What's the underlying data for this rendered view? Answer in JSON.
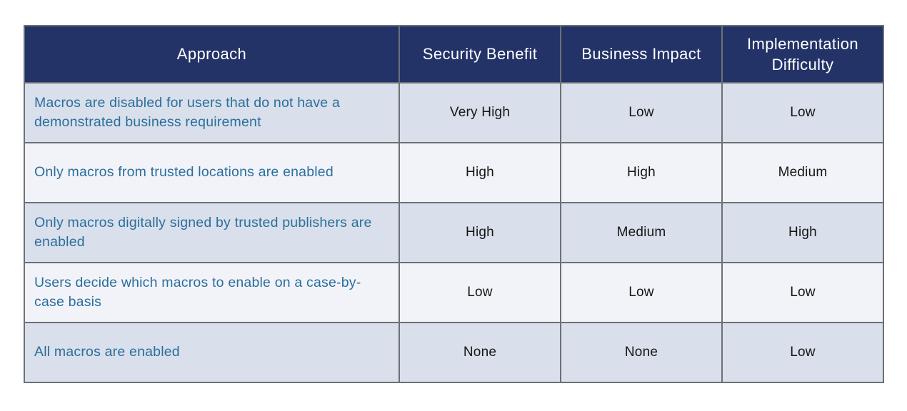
{
  "page": {
    "background": "#ffffff"
  },
  "table": {
    "columns": [
      {
        "key": "approach",
        "label": "Approach"
      },
      {
        "key": "security_benefit",
        "label": "Security Benefit"
      },
      {
        "key": "business_impact",
        "label": "Business Impact"
      },
      {
        "key": "implementation_difficulty",
        "label": "Implementation Difficulty"
      }
    ],
    "rows": [
      {
        "approach": "Macros are disabled for users that do not have a demonstrated business requirement",
        "security_benefit": "Very High",
        "business_impact": "Low",
        "implementation_difficulty": "Low"
      },
      {
        "approach": "Only macros from trusted locations are enabled",
        "security_benefit": "High",
        "business_impact": "High",
        "implementation_difficulty": "Medium"
      },
      {
        "approach": "Only macros digitally signed by trusted publishers are enabled",
        "security_benefit": "High",
        "business_impact": "Medium",
        "implementation_difficulty": "High"
      },
      {
        "approach": "Users decide which macros to enable on a case-by-case basis",
        "security_benefit": "Low",
        "business_impact": "Low",
        "implementation_difficulty": "Low"
      },
      {
        "approach": "All macros are enabled",
        "security_benefit": "None",
        "business_impact": "None",
        "implementation_difficulty": "Low"
      }
    ],
    "colors": {
      "header_bg": "#233368",
      "header_text": "#ffffff",
      "row_odd_bg": "#d9dfeb",
      "row_even_bg": "#f2f3f9",
      "approach_text": "#2b6f9c",
      "value_text": "#161616",
      "border": "#6d7073"
    }
  }
}
